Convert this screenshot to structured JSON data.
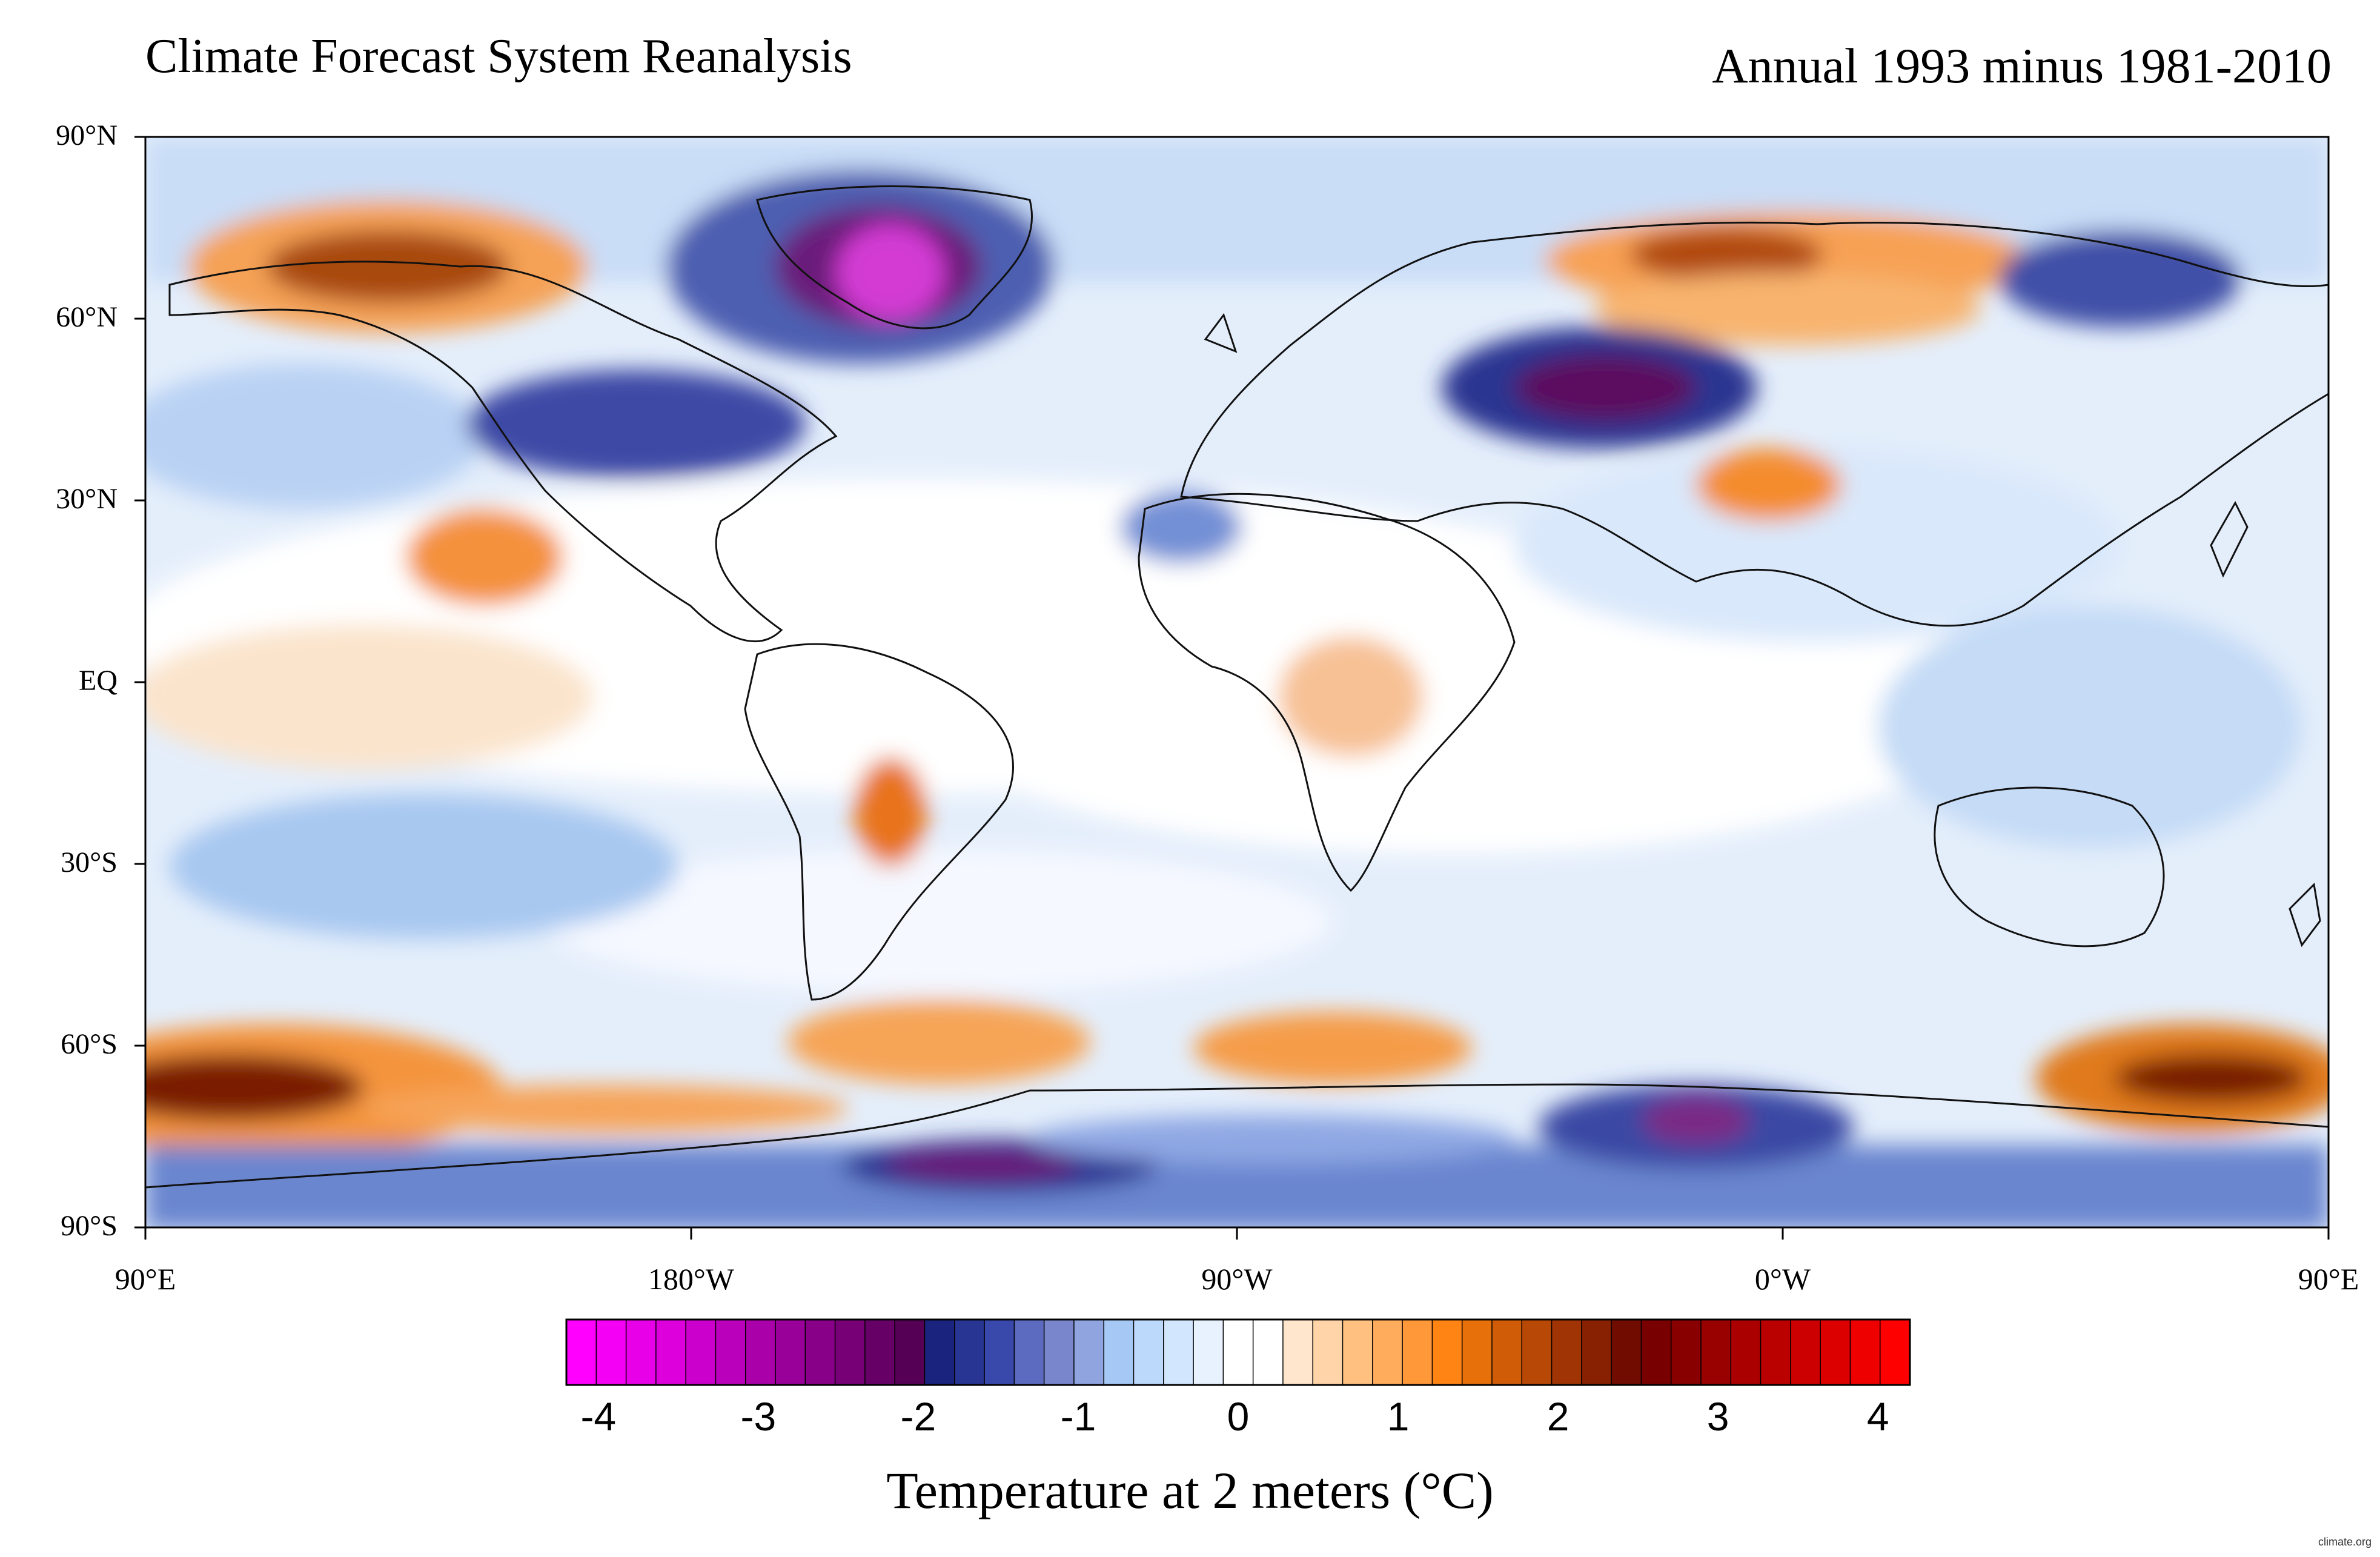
{
  "header": {
    "title_left": "Climate Forecast System Reanalysis",
    "title_right": "Annual 1993 minus 1981-2010"
  },
  "axes": {
    "lat_labels": [
      "90°N",
      "60°N",
      "30°N",
      "EQ",
      "30°S",
      "60°S",
      "90°S"
    ],
    "lon_labels": [
      "90°E",
      "180°W",
      "90°W",
      "0°W",
      "90°E"
    ]
  },
  "colorbar": {
    "title": "Temperature at 2 meters (°C)",
    "tick_labels": [
      "-4",
      "-3",
      "-2",
      "-1",
      "0",
      "1",
      "2",
      "3",
      "4"
    ],
    "range": [
      -4.2,
      4.2
    ],
    "colors": [
      "#ff00ff",
      "#f400f4",
      "#e800e8",
      "#dd00dd",
      "#cc00cc",
      "#bb00bb",
      "#aa00aa",
      "#990099",
      "#880088",
      "#770077",
      "#660066",
      "#550055",
      "#1a237e",
      "#283593",
      "#3949ab",
      "#5c6bc0",
      "#7986cb",
      "#90a4e0",
      "#a5c8f5",
      "#bcd8fa",
      "#d2e6fd",
      "#e8f2ff",
      "#ffffff",
      "#ffffff",
      "#ffe6cc",
      "#ffd4a8",
      "#ffc080",
      "#ffac5c",
      "#ff9838",
      "#ff8414",
      "#e8700a",
      "#d05c08",
      "#b84806",
      "#a03404",
      "#882002",
      "#700c00",
      "#780000",
      "#880000",
      "#990000",
      "#aa0000",
      "#bb0000",
      "#cc0000",
      "#dd0000",
      "#ee0000",
      "#ff0000"
    ]
  },
  "watermark": "climate.org"
}
